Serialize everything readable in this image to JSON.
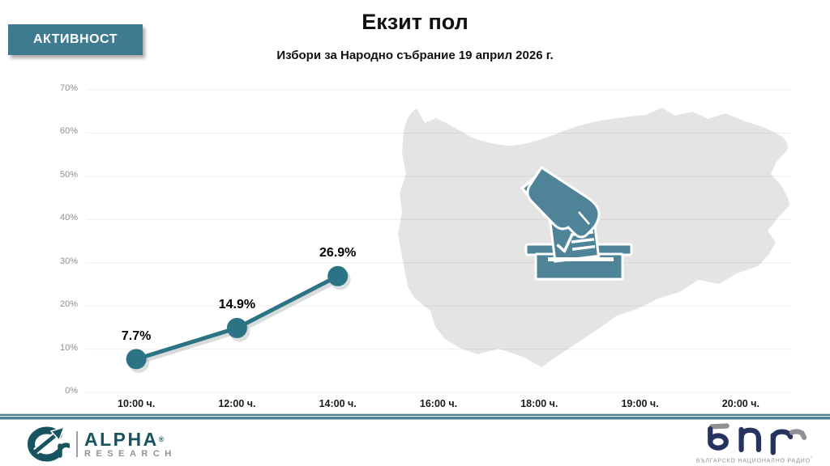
{
  "header": {
    "badge_label": "АКТИВНОСТ",
    "title": "Екзит пол",
    "subtitle": "Избори за Народно събрание 19 април 2026 г."
  },
  "chart_data": {
    "type": "line",
    "title": "Екзит пол",
    "subtitle": "Избори за Народно събрание 19 април 2026 г.",
    "categories": [
      "10:00 ч.",
      "12:00 ч.",
      "14:00 ч.",
      "16:00 ч.",
      "18:00 ч.",
      "19:00 ч.",
      "20:00 ч."
    ],
    "series": [
      {
        "name": "АКТИВНОСТ",
        "values": [
          7.7,
          14.9,
          26.9,
          null,
          null,
          null,
          null
        ],
        "point_labels": [
          "7.7%",
          "14.9%",
          "26.9%",
          null,
          null,
          null,
          null
        ],
        "color": "#2c7386"
      }
    ],
    "yticks": [
      "70%",
      "60%",
      "50%",
      "40%",
      "30%",
      "20%",
      "10%",
      "0%"
    ],
    "ylim": [
      0,
      70
    ],
    "xlabel": "",
    "ylabel": "",
    "grid": "horizontal",
    "legend": "none"
  },
  "map": {
    "region": "bulgaria-silhouette",
    "fill": "#e4e4e4",
    "icon": "ballot-box-hand-icon",
    "icon_color": "#4e8398"
  },
  "footer": {
    "alpha": {
      "brand": "ALPHA",
      "reg": "®",
      "sub": "RESEARCH"
    },
    "bnr": {
      "brand": "бнр",
      "sub": "БЪЛГАРСКО НАЦИОНАЛНО РАДИО",
      "deg": "°"
    }
  },
  "colors": {
    "badge_teal": "#3e7b90",
    "line_teal": "#2c7386",
    "icon_teal": "#4e8398",
    "map_gray": "#e4e4e4",
    "divider_teal": "#4a8196",
    "alpha_teal": "#17545f",
    "bnr_navy": "#26335f"
  }
}
